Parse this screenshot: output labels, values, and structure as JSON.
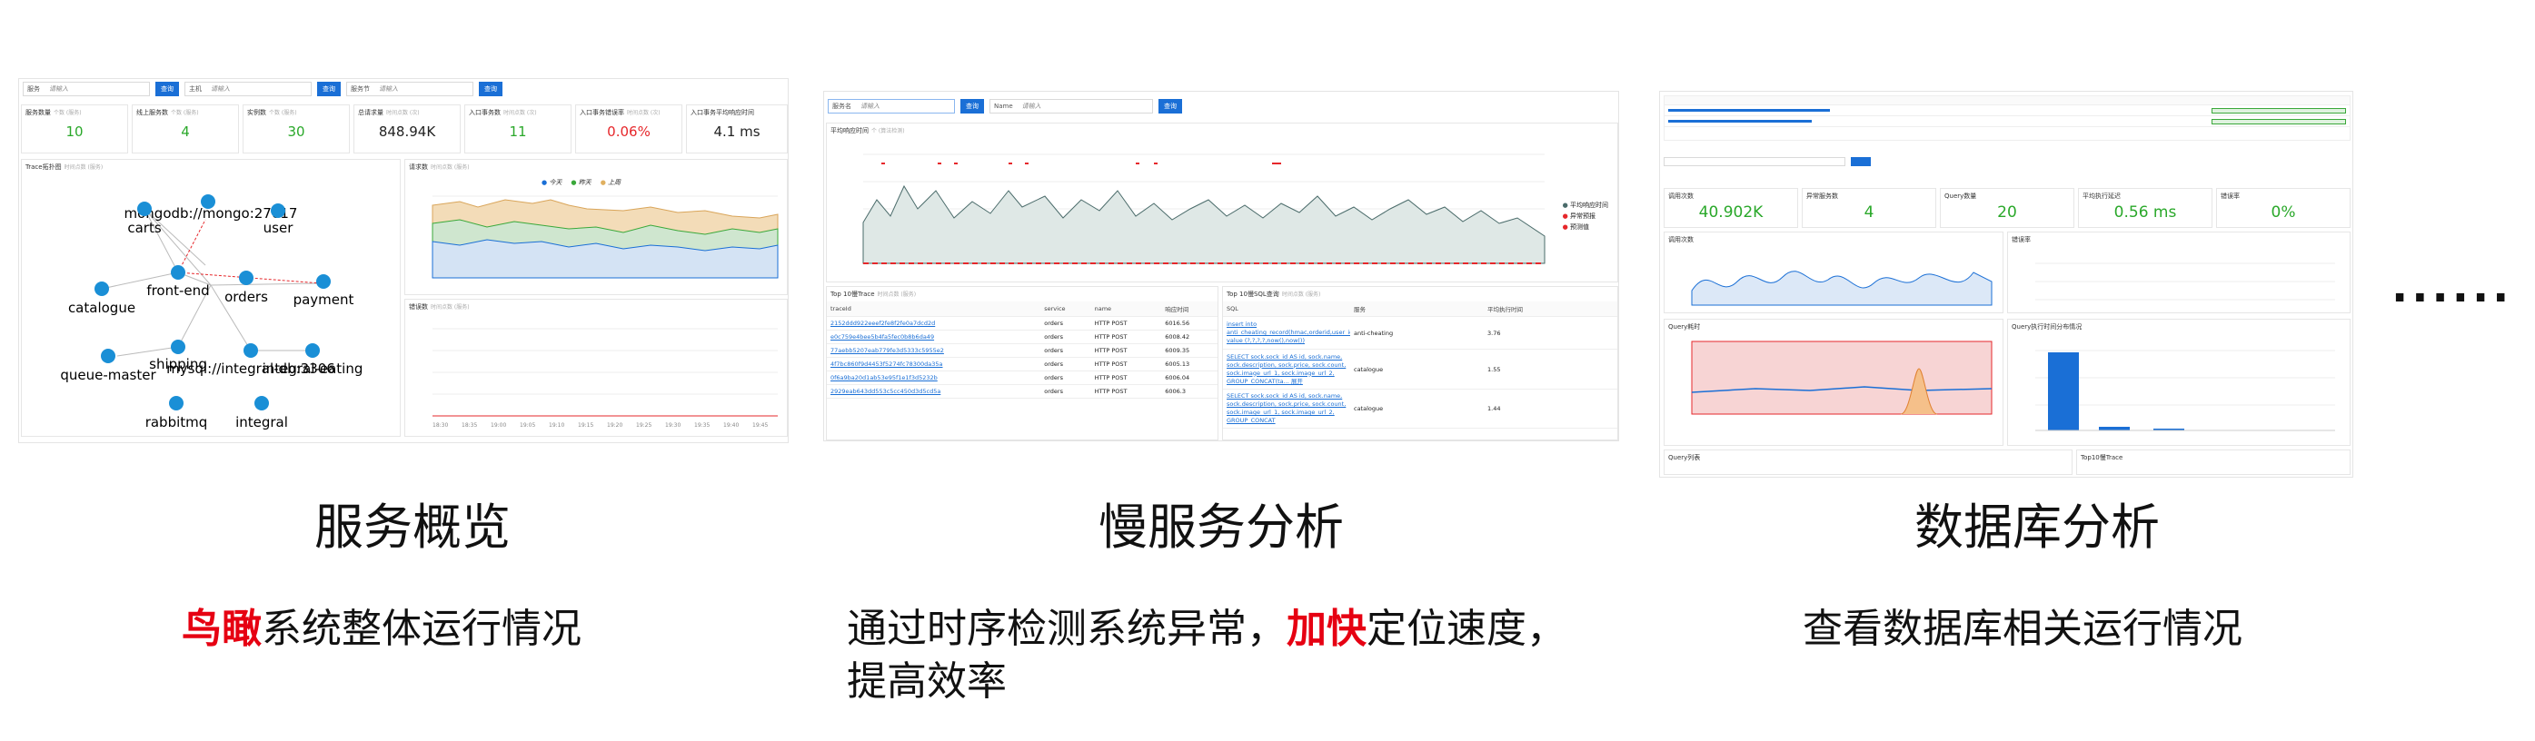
{
  "panel1": {
    "filters": [
      {
        "label": "服务",
        "placeholder": "请输入"
      },
      {
        "label": "主机",
        "placeholder": "请输入"
      },
      {
        "label": "服务节",
        "placeholder": "请输入"
      }
    ],
    "query_label": "查询",
    "kpis": [
      {
        "title": "服务数量",
        "sub": "个数 (服务)",
        "value": "10",
        "color": "green"
      },
      {
        "title": "线上服务数",
        "sub": "个数 (服务)",
        "value": "4",
        "color": "green"
      },
      {
        "title": "实例数",
        "sub": "个数 (服务)",
        "value": "30",
        "color": "green"
      },
      {
        "title": "总请求量",
        "sub": "时间点数 (次)",
        "value": "848.94K",
        "color": "dark"
      },
      {
        "title": "入口事务数",
        "sub": "时间点数 (次)",
        "value": "11",
        "color": "green"
      },
      {
        "title": "入口事务错误率",
        "sub": "时间点数 (次)",
        "value": "0.06%",
        "color": "red"
      },
      {
        "title": "入口事务平均响应时间",
        "sub": "",
        "value": "4.1 ms",
        "color": "dark"
      }
    ],
    "topology_title": "Trace拓扑图",
    "topology_sub": "时间点数 (服务)",
    "nodes": [
      "mongodb://mongo:27017",
      "carts",
      "user",
      "front-end",
      "orders",
      "payment",
      "catalogue",
      "queue-master",
      "shipping",
      "mysql://integral-db:3306",
      "integral-eating",
      "rabbitmq",
      "integral"
    ],
    "requests_title": "请求数",
    "requests_sub": "时间点数 (服务)",
    "legend": [
      "今天",
      "昨天",
      "上周"
    ],
    "errors_title": "错误数",
    "errors_sub": "时间点数 (服务)",
    "x_ticks": [
      "18:30",
      "18:35",
      "19:00",
      "19:05",
      "19:10",
      "19:15",
      "19:20",
      "19:25",
      "19:30",
      "19:35",
      "19:40",
      "19:45"
    ]
  },
  "panel2": {
    "filters": [
      {
        "label": "服务名",
        "placeholder": "请输入"
      },
      {
        "label": "Name",
        "placeholder": "请输入"
      }
    ],
    "query_label": "查询",
    "chart_title": "平均响应时间",
    "chart_sub": "个 (算法检测)",
    "legend": [
      "平均响应时间",
      "异常预报",
      "预测值"
    ],
    "trace_title": "Top 10慢Trace",
    "trace_sub": "时间点数 (服务)",
    "trace_headers": [
      "traceId",
      "service",
      "name",
      "响应时间"
    ],
    "trace_rows": [
      [
        "2152ddd922eeef2fe8f2fe0a7dcd2d",
        "orders",
        "HTTP POST",
        "6016.56"
      ],
      [
        "e0c759e4bee5b4fa5fec0b8b6da49",
        "orders",
        "HTTP POST",
        "6008.42"
      ],
      [
        "77aebb5207eab779fe3d5333c5955e2",
        "orders",
        "HTTP POST",
        "6009.35"
      ],
      [
        "4f7bc860f9d4453f5274fc78300da35a",
        "orders",
        "HTTP POST",
        "6005.13"
      ],
      [
        "0f6a9ba20d1ab53e95f1e1f3d5232b",
        "orders",
        "HTTP POST",
        "6006.04"
      ],
      [
        "2929eab643dd553c5cc450d3d5cd5a",
        "orders",
        "HTTP POST",
        "6006.3"
      ]
    ],
    "sql_title": "Top 10慢SQL查询",
    "sql_sub": "时间点数 (服务)",
    "sql_headers": [
      "SQL",
      "服务",
      "平均执行时间"
    ],
    "sql_rows": [
      [
        "insert into anti_cheating_record(hmac,orderid,user_id,create_time,update_time) value (?,?,?,?,now(),now())",
        "anti-cheating",
        "3.76"
      ],
      [
        "SELECT sock.sock_id AS id, sock.name, sock.description, sock.price, sock.count, sock.image_url_1, sock.image_url_2, GROUP_CONCAT(ta... 展开",
        "catalogue",
        "1.55"
      ],
      [
        "SELECT sock.sock_id AS id, sock.name, sock.description, sock.price, sock.count, sock.image_url_1, sock.image_url_2, GROUP_CONCAT",
        "catalogue",
        "1.44"
      ]
    ]
  },
  "panel3": {
    "kpis": [
      {
        "title": "调用次数",
        "value": "40.902K",
        "color": "green"
      },
      {
        "title": "异常服务数",
        "value": "4",
        "color": "green"
      },
      {
        "title": "Query数量",
        "value": "20",
        "color": "green"
      },
      {
        "title": "平均执行延迟",
        "value": "0.56 ms",
        "color": "green"
      },
      {
        "title": "错误率",
        "value": "0%",
        "color": "green"
      }
    ],
    "chart1_title": "调用次数",
    "chart2_title": "错误率",
    "chart3_title": "Query耗时",
    "chart4_title": "Query执行时间分布情况",
    "table1_title": "Query列表",
    "table2_title": "Top10慢Trace"
  },
  "captions": [
    {
      "title": "服务概览",
      "highlight": "鸟瞰",
      "rest": "系统整体运行情况"
    },
    {
      "title": "慢服务分析",
      "pre": "通过时序检测系统异常，",
      "highlight": "加快",
      "rest": "定位速度，",
      "line2": "提高效率"
    },
    {
      "title": "数据库分析",
      "rest": "查看数据库相关运行情况"
    }
  ],
  "more": "......"
}
